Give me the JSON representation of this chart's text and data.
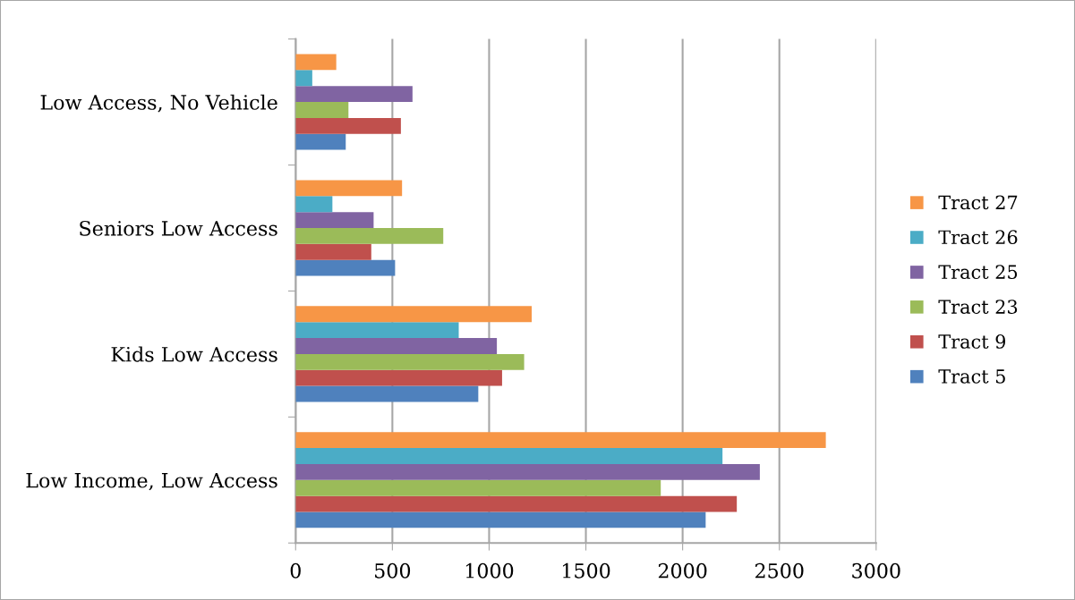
{
  "chart_data": {
    "type": "bar",
    "orientation": "horizontal",
    "categories": [
      "Low Access, No Vehicle",
      "Seniors Low Access",
      "Kids Low Access",
      "Low Income, Low Access"
    ],
    "series": [
      {
        "name": "Tract 5",
        "color": "#4f81bd",
        "values": [
          259,
          514,
          944,
          2119
        ]
      },
      {
        "name": "Tract 9",
        "color": "#c0504d",
        "values": [
          544,
          391,
          1067,
          2280
        ]
      },
      {
        "name": "Tract 23",
        "color": "#9bbb59",
        "values": [
          273,
          763,
          1181,
          1887
        ]
      },
      {
        "name": "Tract 25",
        "color": "#8064a2",
        "values": [
          604,
          403,
          1040,
          2399
        ]
      },
      {
        "name": "Tract 26",
        "color": "#4bacc6",
        "values": [
          86,
          190,
          843,
          2206
        ]
      },
      {
        "name": "Tract 27",
        "color": "#f79646",
        "values": [
          210,
          550,
          1220,
          2740
        ]
      }
    ],
    "xlim": [
      0,
      3000
    ],
    "xticks": [
      0,
      500,
      1000,
      1500,
      2000,
      2500,
      3000
    ],
    "grid": "x",
    "legend": "right"
  }
}
